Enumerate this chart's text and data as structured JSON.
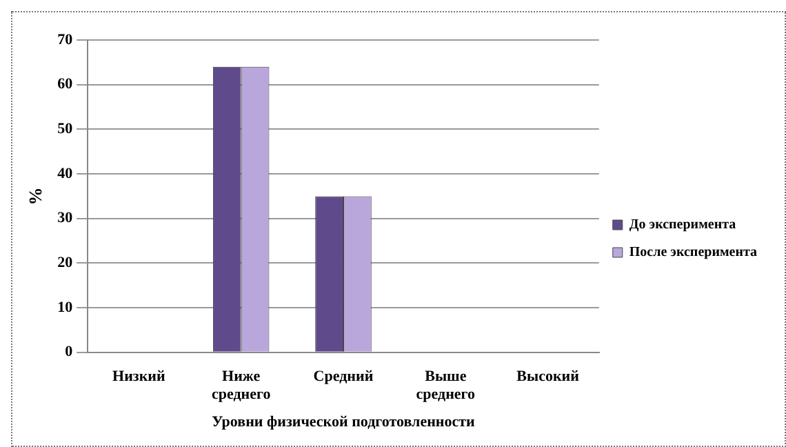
{
  "chart_data": {
    "type": "bar",
    "xlabel": "Уровни физической подготовленности",
    "ylabel": "%",
    "categories": [
      "Низкий",
      "Ниже среднего",
      "Средний",
      "Выше среднего",
      "Высокий"
    ],
    "series": [
      {
        "name": "До эксперимента",
        "color": "#5f4b8b",
        "values": [
          0,
          64,
          35,
          0,
          0
        ]
      },
      {
        "name": "После эксперимента",
        "color": "#b9a7dc",
        "values": [
          0,
          64,
          35,
          0,
          0
        ]
      }
    ],
    "ylim": [
      0,
      70
    ],
    "yticks": [
      0,
      10,
      20,
      30,
      40,
      50,
      60,
      70
    ],
    "grid": "y",
    "legend": "right"
  }
}
